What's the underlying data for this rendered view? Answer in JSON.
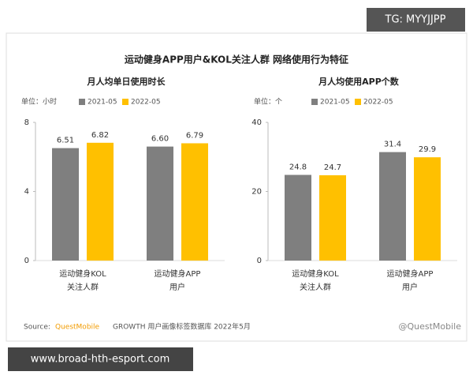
{
  "title": "运动健身APP用户&KOL关注人群 网络使用行为特征",
  "tag": "TG: MYYJJPP",
  "footer_url": "www.broad-hth-esport.com",
  "watermark": "@QuestMobile",
  "source": {
    "label": "Source:",
    "brand": "QuestMobile",
    "text": "GROWTH 用户画像标签数据库 2022年5月"
  },
  "chart_data": [
    {
      "type": "bar",
      "title": "月人均单日使用时长",
      "unit": "单位：小时",
      "categories": [
        "运动健身KOL\n关注人群",
        "运动健身APP\n用户"
      ],
      "series": [
        {
          "name": "2021-05",
          "color": "#7f7f7f",
          "values": [
            6.51,
            6.6
          ],
          "value_labels": [
            "6.51",
            "6.60"
          ]
        },
        {
          "name": "2022-05",
          "color": "#ffc000",
          "values": [
            6.82,
            6.79
          ]
        }
      ],
      "ylim": [
        0,
        8
      ],
      "yticks": [
        0,
        4,
        8
      ]
    },
    {
      "type": "bar",
      "title": "月人均使用APP个数",
      "unit": "单位：个",
      "categories": [
        "运动健身KOL\n关注人群",
        "运动健身APP\n用户"
      ],
      "series": [
        {
          "name": "2021-05",
          "color": "#7f7f7f",
          "values": [
            24.8,
            31.4
          ]
        },
        {
          "name": "2022-05",
          "color": "#ffc000",
          "values": [
            24.7,
            29.9
          ]
        }
      ],
      "ylim": [
        0,
        40
      ],
      "yticks": [
        0,
        20,
        40
      ]
    }
  ]
}
